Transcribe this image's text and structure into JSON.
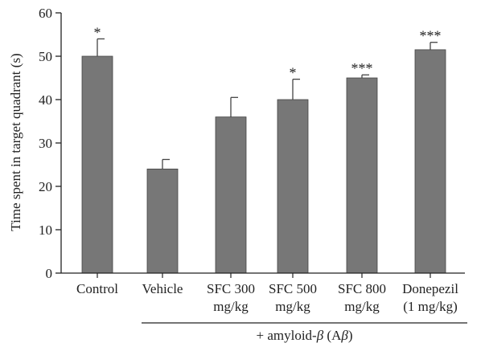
{
  "chart_data": {
    "type": "bar",
    "ylabel": "Time spent in target quadrant (s)",
    "ylim": [
      0,
      60
    ],
    "yticks": [
      "0",
      "10",
      "20",
      "30",
      "40",
      "50",
      "60"
    ],
    "categories": [
      [
        "Control"
      ],
      [
        "Vehicle"
      ],
      [
        "SFC 300",
        "mg/kg"
      ],
      [
        "SFC 500",
        "mg/kg"
      ],
      [
        "SFC 800",
        "mg/kg"
      ],
      [
        "Donepezil",
        "(1 mg/kg)"
      ]
    ],
    "values": [
      50,
      24,
      36,
      40,
      45,
      51.5
    ],
    "errors": [
      4,
      2.2,
      4.5,
      4.7,
      0.7,
      1.7
    ],
    "significance": [
      "*",
      "",
      "",
      "*",
      "***",
      "***"
    ],
    "group_label": {
      "text_prefix": "+ amyloid-",
      "beta": "β",
      "text_middle": " (A",
      "text_suffix": ")",
      "start_index": 1,
      "end_index": 5
    },
    "bar_color": "#777777",
    "grid": false
  }
}
